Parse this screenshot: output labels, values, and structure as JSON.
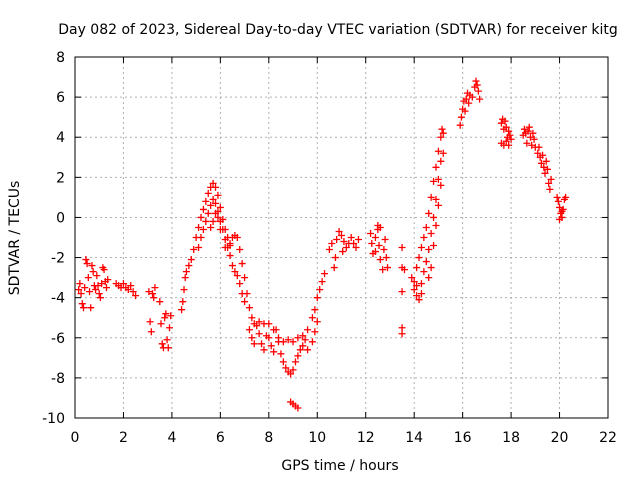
{
  "chart_data": {
    "type": "scatter",
    "title": "Day 082 of 2023, Sidereal Day-to-day VTEC variation (SDTVAR) for receiver kitg",
    "xlabel": "GPS time / hours",
    "ylabel": "SDTVAR / TECUs",
    "xlim": [
      0,
      22
    ],
    "ylim": [
      -10,
      8
    ],
    "xticks": [
      "0",
      "2",
      "4",
      "6",
      "8",
      "10",
      "12",
      "14",
      "16",
      "18",
      "20",
      "22"
    ],
    "yticks": [
      "-10",
      "-8",
      "-6",
      "-4",
      "-2",
      "0",
      "2",
      "4",
      "6",
      "8"
    ],
    "grid": true,
    "marker": "+",
    "color": "#ff0000",
    "series": [
      {
        "name": "SDTVAR",
        "points": [
          [
            0.15,
            -3.6
          ],
          [
            0.2,
            -3.3
          ],
          [
            0.25,
            -3.8
          ],
          [
            0.3,
            -4.3
          ],
          [
            0.35,
            -4.5
          ],
          [
            0.4,
            -3.5
          ],
          [
            0.45,
            -2.1
          ],
          [
            0.5,
            -2.3
          ],
          [
            0.55,
            -3.0
          ],
          [
            0.6,
            -3.7
          ],
          [
            0.65,
            -4.5
          ],
          [
            0.7,
            -2.4
          ],
          [
            0.75,
            -2.7
          ],
          [
            0.8,
            -3.4
          ],
          [
            0.85,
            -3.6
          ],
          [
            0.9,
            -2.9
          ],
          [
            0.95,
            -3.4
          ],
          [
            1.0,
            -3.8
          ],
          [
            1.05,
            -4.0
          ],
          [
            1.1,
            -3.3
          ],
          [
            1.15,
            -2.5
          ],
          [
            1.2,
            -2.6
          ],
          [
            1.25,
            -3.2
          ],
          [
            1.3,
            -3.5
          ],
          [
            1.35,
            -3.1
          ],
          [
            1.7,
            -3.3
          ],
          [
            1.8,
            -3.4
          ],
          [
            1.9,
            -3.5
          ],
          [
            2.0,
            -3.3
          ],
          [
            2.1,
            -3.5
          ],
          [
            2.2,
            -3.6
          ],
          [
            2.3,
            -3.4
          ],
          [
            2.4,
            -3.7
          ],
          [
            2.5,
            -3.9
          ],
          [
            3.05,
            -3.7
          ],
          [
            3.1,
            -5.2
          ],
          [
            3.15,
            -5.7
          ],
          [
            3.2,
            -3.8
          ],
          [
            3.25,
            -4.0
          ],
          [
            3.3,
            -3.5
          ],
          [
            3.5,
            -4.2
          ],
          [
            3.55,
            -5.3
          ],
          [
            3.6,
            -6.3
          ],
          [
            3.65,
            -6.5
          ],
          [
            3.7,
            -5.0
          ],
          [
            3.75,
            -4.8
          ],
          [
            3.8,
            -6.1
          ],
          [
            3.85,
            -6.5
          ],
          [
            3.9,
            -5.5
          ],
          [
            3.95,
            -4.9
          ],
          [
            4.4,
            -4.6
          ],
          [
            4.45,
            -4.2
          ],
          [
            4.5,
            -3.6
          ],
          [
            4.55,
            -3.0
          ],
          [
            4.6,
            -2.7
          ],
          [
            4.7,
            -2.4
          ],
          [
            4.8,
            -2.1
          ],
          [
            4.9,
            -1.6
          ],
          [
            5.0,
            -1.0
          ],
          [
            5.1,
            -0.5
          ],
          [
            5.2,
            0.0
          ],
          [
            5.3,
            0.4
          ],
          [
            5.4,
            0.8
          ],
          [
            5.5,
            1.2
          ],
          [
            5.6,
            1.5
          ],
          [
            5.7,
            1.7
          ],
          [
            5.8,
            1.5
          ],
          [
            5.9,
            1.1
          ],
          [
            6.0,
            0.5
          ],
          [
            6.1,
            -0.1
          ],
          [
            6.2,
            -0.6
          ],
          [
            6.3,
            -1.0
          ],
          [
            6.4,
            -1.4
          ],
          [
            5.1,
            -1.5
          ],
          [
            5.2,
            -1.0
          ],
          [
            5.3,
            -0.6
          ],
          [
            5.4,
            -0.2
          ],
          [
            5.5,
            0.2
          ],
          [
            5.6,
            0.6
          ],
          [
            5.7,
            0.9
          ],
          [
            5.8,
            0.7
          ],
          [
            5.9,
            0.3
          ],
          [
            6.0,
            -0.2
          ],
          [
            6.1,
            -0.6
          ],
          [
            6.2,
            -1.1
          ],
          [
            6.3,
            -1.5
          ],
          [
            6.4,
            -1.9
          ],
          [
            6.5,
            -2.4
          ],
          [
            6.6,
            -2.7
          ],
          [
            5.6,
            -0.5
          ],
          [
            5.7,
            -0.2
          ],
          [
            5.8,
            0.2
          ],
          [
            5.9,
            0.0
          ],
          [
            6.0,
            -0.6
          ],
          [
            6.2,
            -1.5
          ],
          [
            6.4,
            -1.3
          ],
          [
            6.5,
            -1.0
          ],
          [
            6.6,
            -0.9
          ],
          [
            6.7,
            -1.0
          ],
          [
            6.8,
            -1.6
          ],
          [
            6.9,
            -2.3
          ],
          [
            7.0,
            -3.0
          ],
          [
            7.1,
            -3.8
          ],
          [
            7.2,
            -4.5
          ],
          [
            7.3,
            -5.0
          ],
          [
            6.7,
            -2.9
          ],
          [
            6.8,
            -3.3
          ],
          [
            6.9,
            -3.8
          ],
          [
            7.0,
            -4.2
          ],
          [
            7.2,
            -5.6
          ],
          [
            7.3,
            -6.0
          ],
          [
            7.4,
            -6.3
          ],
          [
            7.5,
            -5.4
          ],
          [
            7.6,
            -5.8
          ],
          [
            7.7,
            -6.3
          ],
          [
            7.8,
            -6.6
          ],
          [
            7.9,
            -5.9
          ],
          [
            8.0,
            -6.0
          ],
          [
            8.1,
            -6.4
          ],
          [
            8.2,
            -6.7
          ],
          [
            8.3,
            -5.6
          ],
          [
            8.4,
            -6.2
          ],
          [
            8.5,
            -6.8
          ],
          [
            8.6,
            -7.2
          ],
          [
            8.7,
            -7.5
          ],
          [
            8.8,
            -7.7
          ],
          [
            8.9,
            -7.8
          ],
          [
            9.0,
            -7.6
          ],
          [
            9.1,
            -7.2
          ],
          [
            9.2,
            -6.9
          ],
          [
            9.3,
            -6.6
          ],
          [
            9.4,
            -6.4
          ],
          [
            9.5,
            -6.1
          ],
          [
            7.4,
            -5.3
          ],
          [
            7.6,
            -5.2
          ],
          [
            7.8,
            -5.3
          ],
          [
            8.0,
            -5.3
          ],
          [
            8.2,
            -5.6
          ],
          [
            8.4,
            -6.0
          ],
          [
            8.6,
            -6.2
          ],
          [
            8.8,
            -6.1
          ],
          [
            9.0,
            -6.2
          ],
          [
            9.2,
            -6.0
          ],
          [
            9.4,
            -5.9
          ],
          [
            9.6,
            -5.6
          ],
          [
            9.8,
            -5.0
          ],
          [
            9.9,
            -4.6
          ],
          [
            10.0,
            -4.0
          ],
          [
            10.1,
            -3.6
          ],
          [
            10.2,
            -3.2
          ],
          [
            10.3,
            -2.8
          ],
          [
            9.6,
            -6.6
          ],
          [
            9.8,
            -6.2
          ],
          [
            9.9,
            -5.7
          ],
          [
            10.0,
            -5.2
          ],
          [
            8.9,
            -9.2
          ],
          [
            9.0,
            -9.3
          ],
          [
            9.1,
            -9.4
          ],
          [
            9.2,
            -9.5
          ],
          [
            10.5,
            -1.6
          ],
          [
            10.6,
            -1.3
          ],
          [
            10.7,
            -2.5
          ],
          [
            10.8,
            -1.1
          ],
          [
            10.9,
            -0.7
          ],
          [
            11.0,
            -0.9
          ],
          [
            11.1,
            -1.2
          ],
          [
            11.2,
            -1.5
          ],
          [
            11.3,
            -1.3
          ],
          [
            11.4,
            -1.0
          ],
          [
            11.5,
            -1.3
          ],
          [
            11.6,
            -1.5
          ],
          [
            11.7,
            -1.1
          ],
          [
            10.75,
            -2.0
          ],
          [
            11.05,
            -1.7
          ],
          [
            12.2,
            -0.8
          ],
          [
            12.25,
            -1.3
          ],
          [
            12.3,
            -1.8
          ],
          [
            12.4,
            -1.0
          ],
          [
            12.5,
            -0.6
          ],
          [
            12.55,
            -1.4
          ],
          [
            12.6,
            -2.1
          ],
          [
            12.7,
            -2.6
          ],
          [
            12.75,
            -1.6
          ],
          [
            12.8,
            -1.1
          ],
          [
            12.85,
            -2.0
          ],
          [
            12.9,
            -2.5
          ],
          [
            12.5,
            -0.4
          ],
          [
            12.6,
            -0.5
          ],
          [
            12.4,
            -1.7
          ],
          [
            13.5,
            -1.5
          ],
          [
            13.5,
            -2.5
          ],
          [
            13.5,
            -3.7
          ],
          [
            13.5,
            -5.5
          ],
          [
            13.5,
            -5.8
          ],
          [
            13.6,
            -2.6
          ],
          [
            13.9,
            -3.0
          ],
          [
            14.0,
            -3.6
          ],
          [
            14.1,
            -3.9
          ],
          [
            14.2,
            -4.1
          ],
          [
            14.3,
            -3.8
          ],
          [
            14.1,
            -2.5
          ],
          [
            14.2,
            -2.0
          ],
          [
            14.3,
            -1.5
          ],
          [
            14.4,
            -1.0
          ],
          [
            14.5,
            -0.5
          ],
          [
            14.6,
            0.2
          ],
          [
            14.7,
            1.0
          ],
          [
            14.8,
            1.8
          ],
          [
            14.9,
            2.5
          ],
          [
            15.0,
            3.3
          ],
          [
            15.1,
            4.0
          ],
          [
            15.15,
            4.4
          ],
          [
            14.3,
            -3.3
          ],
          [
            14.4,
            -2.7
          ],
          [
            14.5,
            -2.2
          ],
          [
            14.6,
            -1.6
          ],
          [
            14.7,
            -0.8
          ],
          [
            14.8,
            0.0
          ],
          [
            14.9,
            0.9
          ],
          [
            15.0,
            1.9
          ],
          [
            15.1,
            2.8
          ],
          [
            14.0,
            -3.2
          ],
          [
            14.1,
            -3.4
          ],
          [
            14.6,
            -3.0
          ],
          [
            14.7,
            -2.5
          ],
          [
            14.8,
            -1.4
          ],
          [
            14.9,
            -0.4
          ],
          [
            15.0,
            0.6
          ],
          [
            15.1,
            1.6
          ],
          [
            15.2,
            3.2
          ],
          [
            15.2,
            4.2
          ],
          [
            15.9,
            4.6
          ],
          [
            15.95,
            5.0
          ],
          [
            16.0,
            5.4
          ],
          [
            16.05,
            5.8
          ],
          [
            16.1,
            5.3
          ],
          [
            16.15,
            5.9
          ],
          [
            16.2,
            6.2
          ],
          [
            16.25,
            5.7
          ],
          [
            16.3,
            6.1
          ],
          [
            16.4,
            6.0
          ],
          [
            16.5,
            6.5
          ],
          [
            16.55,
            6.8
          ],
          [
            16.6,
            6.6
          ],
          [
            16.65,
            6.3
          ],
          [
            16.7,
            5.9
          ],
          [
            17.6,
            4.7
          ],
          [
            17.65,
            4.9
          ],
          [
            17.7,
            4.4
          ],
          [
            17.75,
            4.8
          ],
          [
            17.8,
            4.5
          ],
          [
            17.85,
            4.0
          ],
          [
            17.9,
            4.3
          ],
          [
            17.95,
            4.1
          ],
          [
            17.6,
            3.7
          ],
          [
            17.7,
            3.6
          ],
          [
            17.8,
            3.8
          ],
          [
            17.9,
            3.6
          ],
          [
            18.0,
            3.9
          ],
          [
            18.5,
            4.1
          ],
          [
            18.55,
            4.4
          ],
          [
            18.6,
            4.2
          ],
          [
            18.65,
            3.7
          ],
          [
            18.7,
            4.3
          ],
          [
            18.75,
            4.5
          ],
          [
            18.8,
            4.0
          ],
          [
            18.85,
            3.6
          ],
          [
            18.9,
            4.2
          ],
          [
            18.95,
            3.9
          ],
          [
            19.0,
            3.5
          ],
          [
            19.1,
            3.2
          ],
          [
            19.15,
            3.5
          ],
          [
            19.2,
            3.0
          ],
          [
            19.25,
            2.7
          ],
          [
            19.3,
            3.1
          ],
          [
            19.35,
            2.5
          ],
          [
            19.4,
            2.2
          ],
          [
            19.45,
            2.8
          ],
          [
            19.5,
            2.4
          ],
          [
            19.55,
            1.7
          ],
          [
            19.6,
            1.4
          ],
          [
            19.65,
            1.9
          ],
          [
            19.9,
            1.0
          ],
          [
            19.95,
            0.8
          ],
          [
            20.0,
            0.5
          ],
          [
            20.05,
            0.2
          ],
          [
            20.1,
            0.0
          ],
          [
            20.15,
            0.4
          ],
          [
            20.2,
            0.9
          ],
          [
            20.25,
            1.0
          ],
          [
            20.0,
            -0.1
          ],
          [
            20.1,
            0.3
          ]
        ]
      }
    ]
  }
}
